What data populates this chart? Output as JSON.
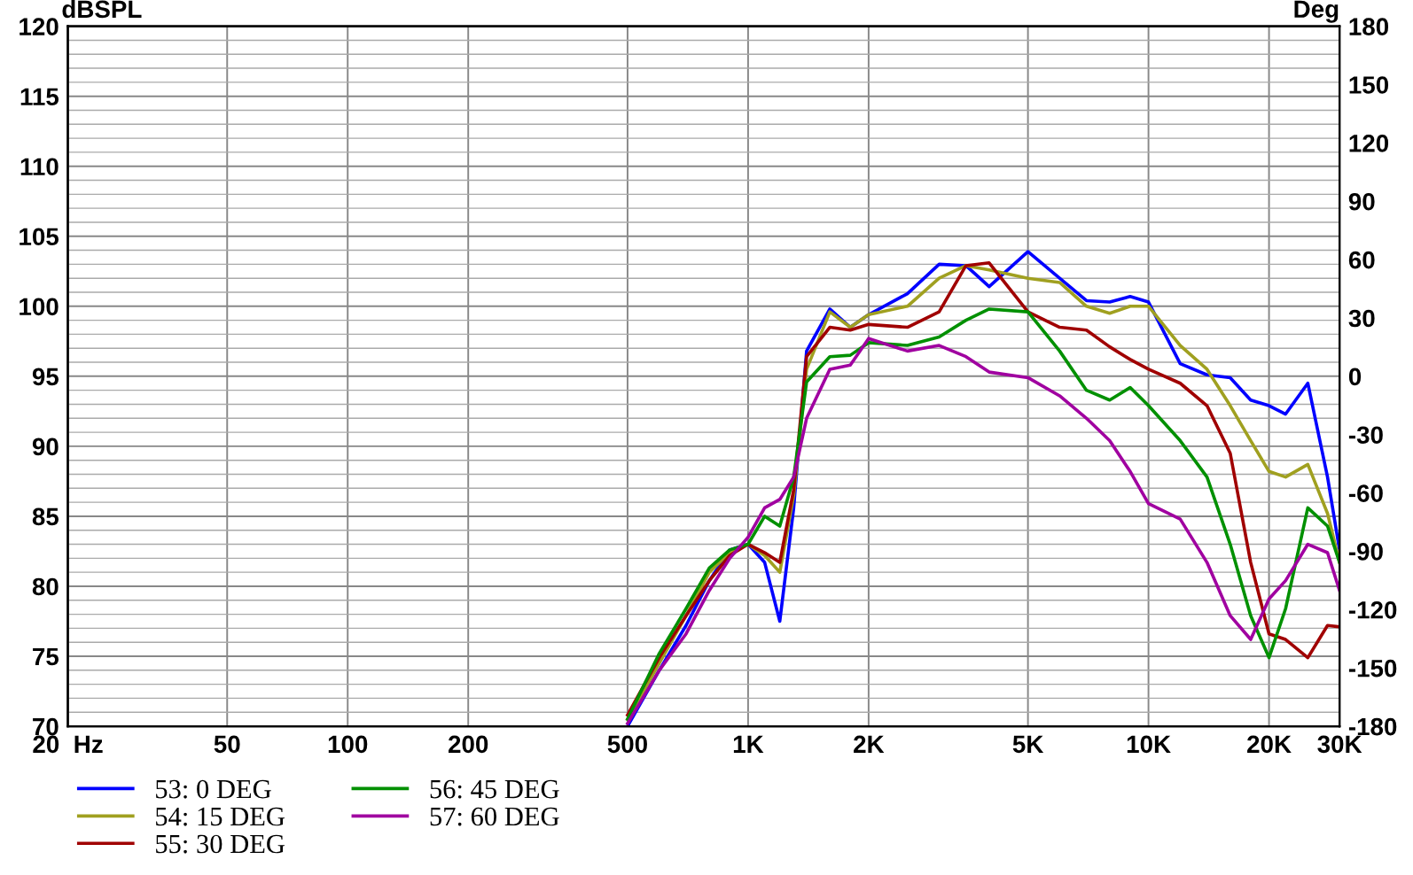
{
  "chart_data": {
    "type": "line",
    "ylabel": "dBSPL",
    "y2label": "Deg",
    "x": [
      500,
      600,
      700,
      800,
      900,
      1000,
      1100,
      1200,
      1300,
      1400,
      1600,
      1800,
      2000,
      2500,
      3000,
      3500,
      4000,
      5000,
      6000,
      7000,
      8000,
      9000,
      10000,
      12000,
      14000,
      16000,
      18000,
      20000,
      22000,
      25000,
      28000,
      30000
    ],
    "series": [
      {
        "name": "53: 0 DEG",
        "color": "#0000ff",
        "values": [
          70.0,
          74.0,
          77.2,
          80.4,
          82.6,
          83.0,
          81.7,
          77.5,
          85.6,
          96.8,
          99.8,
          98.5,
          99.4,
          100.9,
          103.0,
          102.9,
          101.4,
          103.9,
          102.0,
          100.4,
          100.3,
          100.7,
          100.3,
          95.9,
          95.1,
          94.9,
          93.3,
          92.9,
          92.3,
          94.5,
          87.8,
          82.6
        ]
      },
      {
        "name": "54: 15 DEG",
        "color": "#a0a020",
        "values": [
          70.5,
          74.5,
          77.9,
          81.0,
          82.4,
          83.0,
          82.2,
          81.0,
          86.5,
          95.5,
          99.6,
          98.5,
          99.4,
          100.0,
          102.0,
          102.9,
          102.6,
          102.0,
          101.7,
          100.0,
          99.5,
          100.0,
          100.0,
          97.2,
          95.5,
          92.9,
          90.4,
          88.2,
          87.8,
          88.7,
          85.2,
          81.7
        ]
      },
      {
        "name": "55: 30 DEG",
        "color": "#a00000",
        "values": [
          70.8,
          74.9,
          77.9,
          80.4,
          82.2,
          83.0,
          82.4,
          81.7,
          86.9,
          96.4,
          98.5,
          98.3,
          98.7,
          98.5,
          99.6,
          102.9,
          103.1,
          99.6,
          98.5,
          98.3,
          97.1,
          96.2,
          95.5,
          94.5,
          92.9,
          89.5,
          81.7,
          76.6,
          76.2,
          74.9,
          77.2,
          77.1
        ]
      },
      {
        "name": "56: 45 DEG",
        "color": "#009000",
        "values": [
          70.5,
          75.2,
          78.4,
          81.3,
          82.6,
          83.0,
          85.0,
          84.3,
          87.8,
          94.6,
          96.4,
          96.5,
          97.4,
          97.2,
          97.8,
          99.0,
          99.8,
          99.6,
          96.8,
          94.0,
          93.3,
          94.2,
          92.9,
          90.4,
          87.8,
          83.0,
          77.9,
          74.9,
          78.4,
          85.6,
          84.3,
          81.7
        ]
      },
      {
        "name": "57: 60 DEG",
        "color": "#a000a0",
        "values": [
          70.2,
          74.0,
          76.6,
          79.7,
          82.0,
          83.5,
          85.6,
          86.2,
          87.8,
          92.0,
          95.5,
          95.8,
          97.7,
          96.8,
          97.2,
          96.4,
          95.3,
          94.9,
          93.6,
          92.0,
          90.4,
          88.2,
          85.9,
          84.8,
          81.7,
          77.9,
          76.2,
          79.1,
          80.4,
          83.0,
          82.4,
          79.7
        ]
      }
    ],
    "log": "x",
    "xlim": [
      20,
      30000
    ],
    "xticks": [
      {
        "value": 20,
        "label": "20  Hz"
      },
      50,
      100,
      200,
      500,
      {
        "value": 1000,
        "label": "1K"
      },
      {
        "value": 2000,
        "label": "2K"
      },
      {
        "value": 5000,
        "label": "5K"
      },
      {
        "value": 10000,
        "label": "10K"
      },
      {
        "value": 20000,
        "label": "20K"
      },
      {
        "value": 30000,
        "label": "30K"
      }
    ],
    "ylim": [
      70,
      120
    ],
    "yticks": [
      70,
      75,
      80,
      85,
      90,
      95,
      100,
      105,
      110,
      115,
      120
    ],
    "y2lim": [
      -180,
      180
    ],
    "y2ticks": [
      -180,
      -150,
      -120,
      -90,
      -60,
      -30,
      0,
      30,
      60,
      90,
      120,
      150,
      180
    ],
    "grid": true,
    "legend": "bottom",
    "marker": "none",
    "line_style": "solid"
  }
}
